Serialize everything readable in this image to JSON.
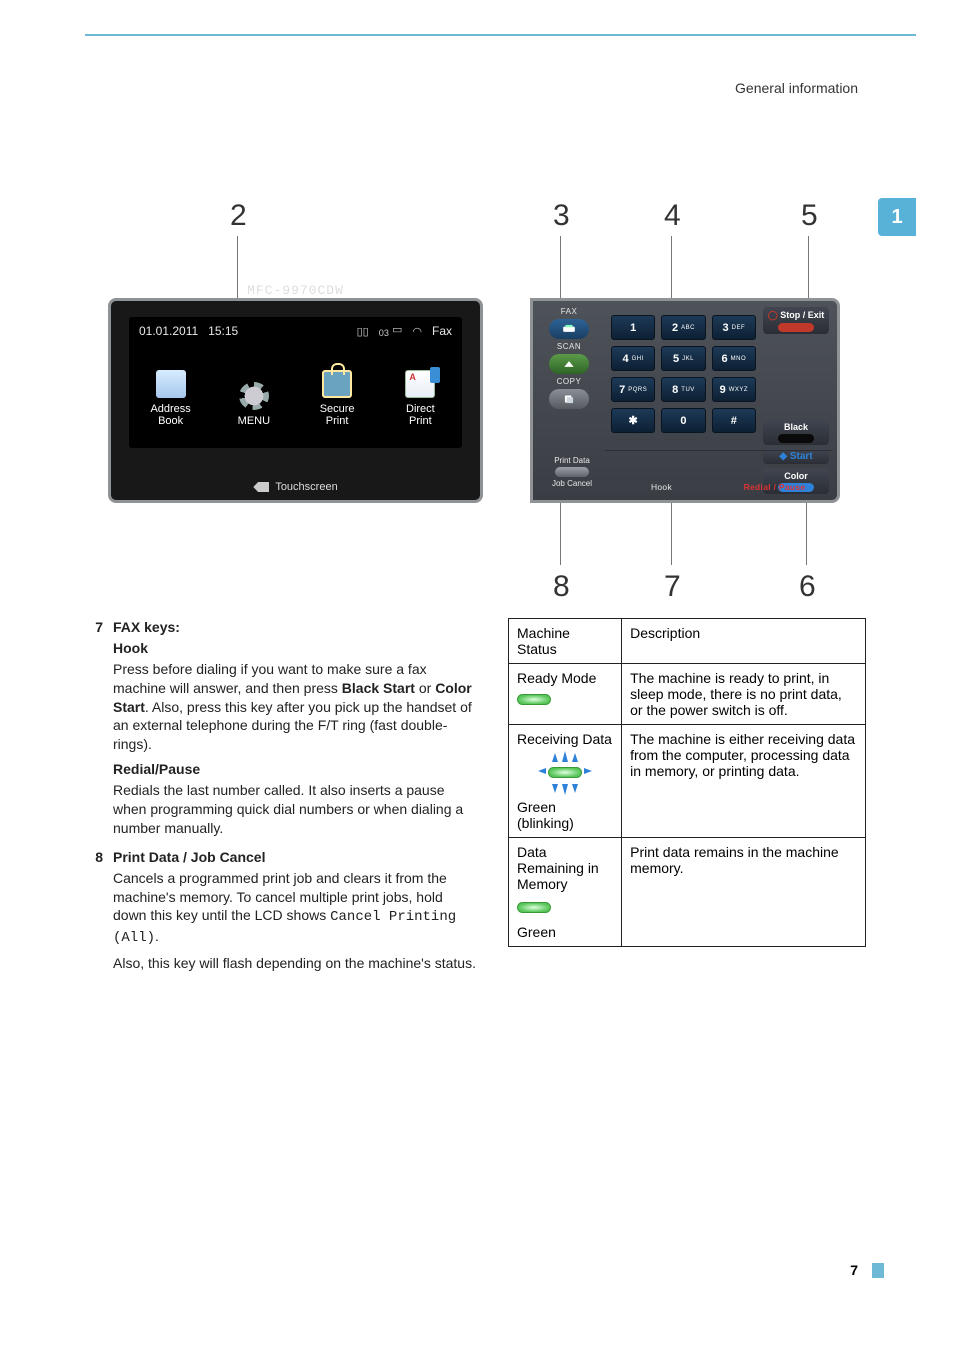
{
  "header": {
    "section": "General information"
  },
  "tab": {
    "number": "1"
  },
  "pageNumber": "7",
  "callouts": {
    "c2": "2",
    "c3": "3",
    "c4": "4",
    "c5": "5",
    "c6": "6",
    "c7": "7",
    "c8": "8"
  },
  "touchscreen": {
    "model": "MFC-9970CDW",
    "date": "01.01.2011",
    "time": "15:15",
    "statusIcons": {
      "sim": "▯▯",
      "counter": "03",
      "tray": "⌧",
      "wifi": "⌃"
    },
    "modeLabel": "Fax",
    "buttons": {
      "addressBook": "Address\nBook",
      "menu": "MENU",
      "securePrint": "Secure\nPrint",
      "directPrint": "Direct\nPrint"
    },
    "footer": "Touchscreen"
  },
  "control": {
    "modes": {
      "fax": "FAX",
      "scan": "SCAN",
      "copy": "COPY"
    },
    "keypad": [
      {
        "d": "1",
        "s": ""
      },
      {
        "d": "2",
        "s": "ABC"
      },
      {
        "d": "3",
        "s": "DEF"
      },
      {
        "d": "4",
        "s": "GHI"
      },
      {
        "d": "5",
        "s": "JKL"
      },
      {
        "d": "6",
        "s": "MNO"
      },
      {
        "d": "7",
        "s": "PQRS"
      },
      {
        "d": "8",
        "s": "TUV"
      },
      {
        "d": "9",
        "s": "WXYZ"
      },
      {
        "d": "✱",
        "s": ""
      },
      {
        "d": "0",
        "s": ""
      },
      {
        "d": "#",
        "s": ""
      }
    ],
    "printData": "Print Data",
    "jobCancel": "Job Cancel",
    "hook": "Hook",
    "redial": "Redial / Pause",
    "stopExit": "Stop / Exit",
    "black": "Black",
    "start": "Start",
    "color": "Color"
  },
  "text": {
    "item7": {
      "num": "7",
      "title": "FAX keys:",
      "hookTitle": "Hook",
      "hookBody1": "Press before dialing if you want to make sure a fax machine will answer, and then press ",
      "hookBold1": "Black Start",
      "hookMid": " or ",
      "hookBold2": "Color Start",
      "hookBody2": ". Also, press this key after you pick up the handset of an external telephone during the F/T ring (fast double-rings).",
      "redialTitle": "Redial/Pause",
      "redialBody": "Redials the last number called. It also inserts a pause when programming quick dial numbers or when dialing a number manually."
    },
    "item8": {
      "num": "8",
      "title": "Print Data / Job Cancel",
      "body1": "Cancels a programmed print job and clears it from the machine's memory. To cancel multiple print jobs, hold down this key until the LCD shows ",
      "mono": "Cancel Printing (All)",
      "body2": ".",
      "body3": "Also, this key will flash depending on the machine's status."
    }
  },
  "table": {
    "h1": "Machine Status",
    "h2": "Description",
    "r1s": "Ready Mode",
    "r1d": "The machine is ready to print, in sleep mode, there is no print data, or the power switch is off.",
    "r2s": "Receiving Data",
    "r2s2": "Green (blinking)",
    "r2d": "The machine is either receiving data from the computer, processing data in memory, or printing data.",
    "r3s": "Data Remaining in Memory",
    "r3s2": "Green",
    "r3d": "Print data remains in the machine memory."
  }
}
